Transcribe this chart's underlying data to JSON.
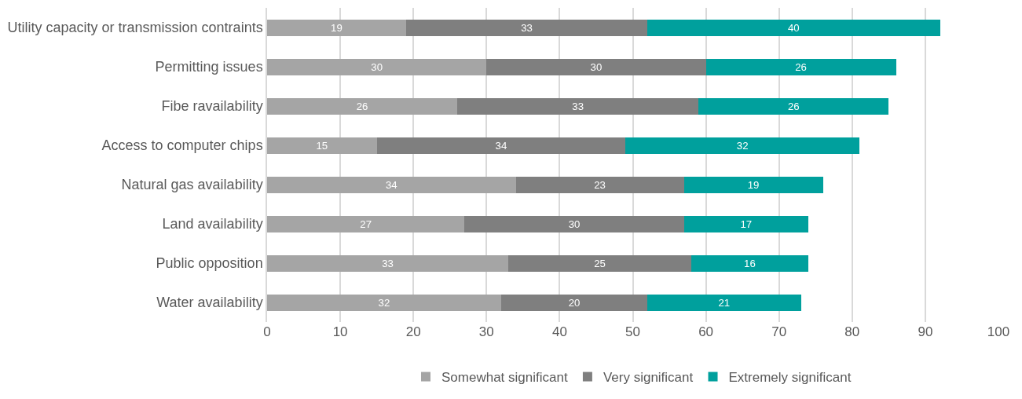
{
  "chart_data": {
    "type": "bar",
    "orientation": "horizontal",
    "stacked": true,
    "data_labels": true,
    "categories": [
      "Utility capacity or transmission contraints",
      "Permitting issues",
      "Fibe ravailability",
      "Access to computer chips",
      "Natural gas availability",
      "Land availability",
      "Public opposition",
      "Water availability"
    ],
    "series": [
      {
        "name": "Somewhat significant",
        "color": "#a5a5a5",
        "values": [
          19,
          30,
          26,
          15,
          34,
          27,
          33,
          32
        ]
      },
      {
        "name": "Very significant",
        "color": "#7f7f7f",
        "values": [
          33,
          30,
          33,
          34,
          23,
          30,
          25,
          20
        ]
      },
      {
        "name": "Extremely significant",
        "color": "#00a09d",
        "values": [
          40,
          26,
          26,
          32,
          19,
          17,
          16,
          21
        ]
      }
    ],
    "xlim": [
      0,
      100
    ],
    "xticks": [
      0,
      10,
      20,
      30,
      40,
      50,
      60,
      70,
      80,
      90,
      100
    ],
    "grid": "x",
    "legend": "bottom"
  }
}
